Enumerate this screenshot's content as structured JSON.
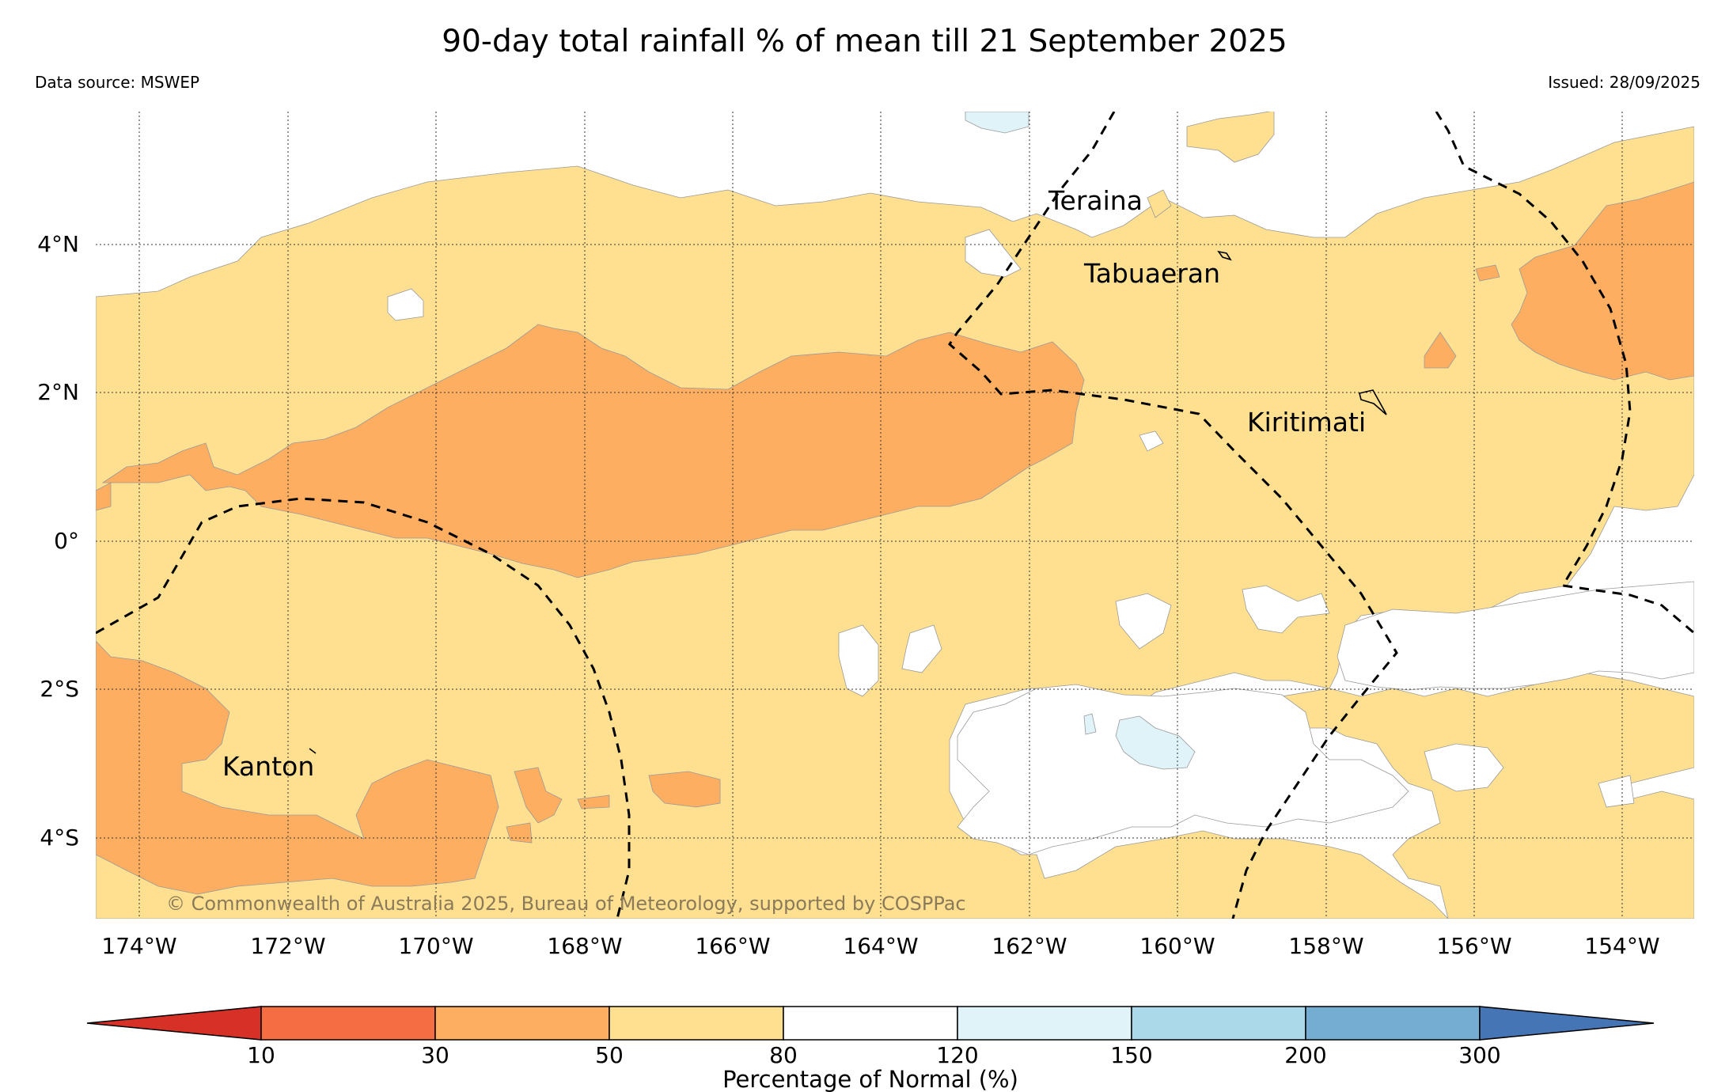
{
  "title": "90-day total rainfall % of mean till 21 September 2025",
  "data_source": "Data source: MSWEP",
  "issued": "Issued: 28/09/2025",
  "copyright": "© Commonwealth of Australia 2025, Bureau of Meteorology, supported by COSPPac",
  "lon_ticks": [
    "174°W",
    "172°W",
    "170°W",
    "168°W",
    "166°W",
    "164°W",
    "162°W",
    "160°W",
    "158°W",
    "156°W",
    "154°W"
  ],
  "lat_ticks": [
    "4°N",
    "2°N",
    "0°",
    "2°S",
    "4°S"
  ],
  "places": {
    "teraina": "Teraina",
    "tabuaeran": "Tabuaeran",
    "kiritimati": "Kiritimati",
    "kanton": "Kanton"
  },
  "colorbar": {
    "label": "Percentage of Normal (%)",
    "ticks": [
      "10",
      "30",
      "50",
      "80",
      "120",
      "150",
      "200",
      "300"
    ],
    "colors": {
      "below_10": "#d73027",
      "10_30": "#f46d43",
      "30_50": "#fdae61",
      "50_80": "#fee090",
      "80_120": "#ffffff",
      "120_150": "#e0f3f8",
      "150_200": "#abd9e9",
      "200_300": "#74add1",
      "above_300": "#4575b4"
    }
  }
}
